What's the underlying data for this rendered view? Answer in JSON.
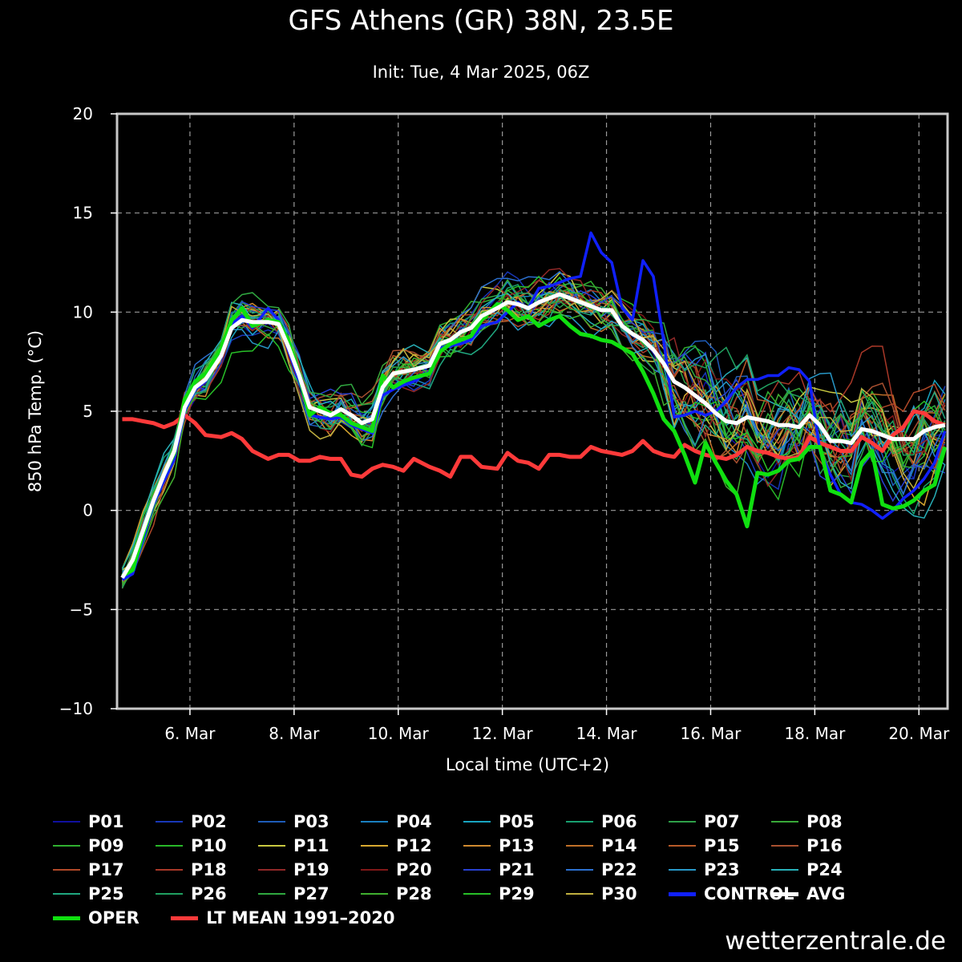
{
  "title": "GFS Athens (GR) 38N, 23.5E",
  "subtitle": "Init: Tue, 4 Mar 2025, 06Z",
  "watermark": "wetterzentrale.de",
  "chart_data": {
    "type": "line",
    "title": "GFS Athens (GR) 38N, 23.5E",
    "subtitle": "Init: Tue, 4 Mar 2025, 06Z",
    "xlabel": "Local time (UTC+2)",
    "ylabel": "850 hPa Temp. (°C)",
    "ylim": [
      -10,
      20
    ],
    "xlim": [
      4.6,
      20.55
    ],
    "x_ticks": [
      6,
      8,
      10,
      12,
      14,
      16,
      18,
      20
    ],
    "x_tick_labels": [
      "6. Mar",
      "8. Mar",
      "10. Mar",
      "12. Mar",
      "14. Mar",
      "16. Mar",
      "18. Mar",
      "20. Mar"
    ],
    "y_ticks": [
      -10,
      -5,
      0,
      5,
      10,
      15,
      20
    ],
    "y_tick_labels": [
      "−10",
      "−5",
      "0",
      "5",
      "10",
      "15",
      "20"
    ],
    "grid": true,
    "legend_position": "bottom",
    "series": [
      {
        "name": "AVG",
        "color": "#ffffff",
        "x": [
          4.7,
          4.9,
          5.1,
          5.3,
          5.5,
          5.7,
          5.9,
          6.1,
          6.3,
          6.6,
          6.8,
          7.0,
          7.2,
          7.5,
          7.7,
          7.9,
          8.1,
          8.3,
          8.5,
          8.7,
          8.9,
          9.1,
          9.3,
          9.5,
          9.7,
          9.9,
          10.1,
          10.3,
          10.6,
          10.8,
          11.0,
          11.2,
          11.4,
          11.6,
          11.9,
          12.1,
          12.3,
          12.5,
          12.7,
          12.9,
          13.1,
          13.3,
          13.5,
          13.7,
          13.9,
          14.1,
          14.3,
          14.5,
          14.7,
          14.9,
          15.1,
          15.3,
          15.5,
          15.7,
          15.9,
          16.1,
          16.3,
          16.5,
          16.7,
          16.9,
          17.1,
          17.3,
          17.5,
          17.7,
          17.9,
          18.1,
          18.3,
          18.5,
          18.7,
          18.9,
          19.1,
          19.3,
          19.5,
          19.7,
          19.9,
          20.1,
          20.3,
          20.5
        ],
        "y": [
          -3.4,
          -2.5,
          -1.0,
          0.5,
          1.8,
          3.0,
          5.2,
          6.2,
          6.6,
          7.8,
          9.2,
          9.6,
          9.5,
          9.5,
          9.4,
          8.2,
          6.8,
          5.2,
          5.0,
          4.8,
          5.1,
          4.8,
          4.4,
          4.6,
          6.2,
          6.9,
          7.0,
          7.1,
          7.3,
          8.4,
          8.6,
          9.0,
          9.2,
          9.8,
          10.2,
          10.5,
          10.4,
          10.2,
          10.5,
          10.7,
          10.9,
          10.7,
          10.5,
          10.3,
          10.1,
          10.1,
          9.3,
          8.9,
          8.6,
          8.1,
          7.4,
          6.5,
          6.2,
          5.8,
          5.4,
          4.9,
          4.5,
          4.4,
          4.7,
          4.6,
          4.5,
          4.3,
          4.3,
          4.2,
          4.8,
          4.3,
          3.5,
          3.5,
          3.4,
          4.1,
          4.0,
          3.8,
          3.6,
          3.6,
          3.6,
          4.0,
          4.2,
          4.3
        ]
      },
      {
        "name": "CONTROL",
        "color": "#1020ff",
        "x": [
          4.7,
          4.9,
          5.1,
          5.3,
          5.5,
          5.7,
          5.9,
          6.1,
          6.3,
          6.6,
          6.8,
          7.0,
          7.2,
          7.5,
          7.7,
          7.9,
          8.1,
          8.3,
          8.5,
          8.7,
          8.9,
          9.1,
          9.3,
          9.5,
          9.7,
          9.9,
          10.1,
          10.3,
          10.6,
          10.8,
          11.0,
          11.2,
          11.4,
          11.6,
          11.9,
          12.1,
          12.3,
          12.5,
          12.7,
          12.9,
          13.1,
          13.3,
          13.5,
          13.7,
          13.9,
          14.1,
          14.3,
          14.5,
          14.7,
          14.9,
          15.1,
          15.3,
          15.5,
          15.7,
          15.9,
          16.1,
          16.3,
          16.5,
          16.7,
          16.9,
          17.1,
          17.3,
          17.5,
          17.7,
          17.9,
          18.1,
          18.3,
          18.5,
          18.7,
          18.9,
          19.1,
          19.3,
          19.5,
          19.7,
          19.9,
          20.1,
          20.3,
          20.5
        ],
        "y": [
          -3.5,
          -3.2,
          -1.5,
          0.3,
          1.5,
          2.6,
          5.0,
          6.1,
          6.5,
          7.9,
          9.4,
          9.8,
          9.2,
          10.2,
          9.6,
          8.0,
          6.5,
          4.8,
          4.7,
          4.6,
          4.7,
          4.3,
          4.1,
          3.9,
          5.8,
          6.1,
          6.3,
          6.5,
          7.0,
          8.2,
          8.3,
          8.4,
          8.6,
          9.3,
          9.5,
          10.0,
          10.5,
          10.2,
          11.2,
          11.3,
          11.5,
          11.7,
          11.8,
          14.0,
          13.0,
          12.5,
          10.2,
          9.6,
          12.6,
          11.8,
          8.5,
          4.7,
          4.8,
          5.0,
          4.8,
          5.0,
          5.5,
          6.2,
          6.6,
          6.6,
          6.8,
          6.8,
          7.2,
          7.1,
          6.5,
          3.0,
          1.8,
          0.8,
          0.4,
          0.3,
          0.0,
          -0.4,
          0.0,
          0.6,
          1.0,
          1.6,
          2.4,
          4.0
        ]
      },
      {
        "name": "OPER",
        "color": "#10e010",
        "x": [
          4.7,
          4.9,
          5.1,
          5.3,
          5.5,
          5.7,
          5.9,
          6.1,
          6.3,
          6.6,
          6.8,
          7.0,
          7.2,
          7.5,
          7.7,
          7.9,
          8.1,
          8.3,
          8.5,
          8.7,
          8.9,
          9.1,
          9.3,
          9.5,
          9.7,
          9.9,
          10.1,
          10.3,
          10.6,
          10.8,
          11.0,
          11.2,
          11.4,
          11.6,
          11.9,
          12.1,
          12.3,
          12.5,
          12.7,
          12.9,
          13.1,
          13.3,
          13.5,
          13.7,
          13.9,
          14.1,
          14.3,
          14.5,
          14.7,
          14.9,
          15.1,
          15.3,
          15.5,
          15.7,
          15.9,
          16.1,
          16.3,
          16.5,
          16.7,
          16.9,
          17.1,
          17.3,
          17.5,
          17.7,
          17.9,
          18.1,
          18.3,
          18.5,
          18.7,
          18.9,
          19.1,
          19.3,
          19.5,
          19.7,
          19.9,
          20.1,
          20.3,
          20.5
        ],
        "y": [
          -3.3,
          -3.0,
          -1.2,
          0.5,
          1.8,
          2.9,
          5.6,
          6.5,
          6.9,
          8.2,
          9.6,
          10.2,
          9.3,
          9.6,
          9.5,
          8.5,
          6.8,
          4.8,
          5.2,
          4.9,
          4.8,
          4.4,
          4.2,
          4.0,
          6.8,
          6.2,
          6.5,
          6.7,
          6.9,
          8.0,
          8.4,
          8.6,
          8.8,
          9.6,
          10.4,
          10.1,
          9.6,
          9.8,
          9.3,
          9.6,
          9.8,
          9.3,
          8.9,
          8.8,
          8.6,
          8.5,
          8.2,
          7.9,
          7.0,
          5.9,
          4.6,
          4.0,
          2.8,
          1.4,
          3.4,
          2.4,
          1.5,
          0.8,
          -0.8,
          1.9,
          1.8,
          2.0,
          2.5,
          2.6,
          3.2,
          3.2,
          1.0,
          0.8,
          0.4,
          2.4,
          3.0,
          0.3,
          0.1,
          0.2,
          0.5,
          1.0,
          1.3,
          3.2
        ]
      },
      {
        "name": "LT MEAN 1991–2020",
        "color": "#ff3a3a",
        "x": [
          4.7,
          4.9,
          5.1,
          5.3,
          5.5,
          5.7,
          5.9,
          6.1,
          6.3,
          6.6,
          6.8,
          7.0,
          7.2,
          7.5,
          7.7,
          7.9,
          8.1,
          8.3,
          8.5,
          8.7,
          8.9,
          9.1,
          9.3,
          9.5,
          9.7,
          9.9,
          10.1,
          10.3,
          10.6,
          10.8,
          11.0,
          11.2,
          11.4,
          11.6,
          11.9,
          12.1,
          12.3,
          12.5,
          12.7,
          12.9,
          13.1,
          13.3,
          13.5,
          13.7,
          13.9,
          14.1,
          14.3,
          14.5,
          14.7,
          14.9,
          15.1,
          15.3,
          15.5,
          15.7,
          15.9,
          16.1,
          16.3,
          16.5,
          16.7,
          16.9,
          17.1,
          17.3,
          17.5,
          17.7,
          17.9,
          18.1,
          18.3,
          18.5,
          18.7,
          18.9,
          19.1,
          19.3,
          19.5,
          19.7,
          19.9,
          20.1,
          20.3,
          20.5
        ],
        "y": [
          4.6,
          4.6,
          4.5,
          4.4,
          4.2,
          4.4,
          4.8,
          4.4,
          3.8,
          3.7,
          3.9,
          3.6,
          3.0,
          2.6,
          2.8,
          2.8,
          2.5,
          2.5,
          2.7,
          2.6,
          2.6,
          1.8,
          1.7,
          2.1,
          2.3,
          2.2,
          2.0,
          2.6,
          2.2,
          2.0,
          1.7,
          2.7,
          2.7,
          2.2,
          2.1,
          2.9,
          2.5,
          2.4,
          2.1,
          2.8,
          2.8,
          2.7,
          2.7,
          3.2,
          3.0,
          2.9,
          2.8,
          3.0,
          3.5,
          3.0,
          2.8,
          2.7,
          3.3,
          3.0,
          2.8,
          2.7,
          2.6,
          2.8,
          3.2,
          3.0,
          2.9,
          2.7,
          2.6,
          2.7,
          3.7,
          3.4,
          3.2,
          3.0,
          3.0,
          3.7,
          3.4,
          3.0,
          3.8,
          4.2,
          5.0,
          4.9,
          4.5,
          4.3
        ]
      }
    ]
  },
  "legend": [
    {
      "label": "P01",
      "color": "#1010a0"
    },
    {
      "label": "P02",
      "color": "#1838b8"
    },
    {
      "label": "P03",
      "color": "#1e5cb8"
    },
    {
      "label": "P04",
      "color": "#1a80c0"
    },
    {
      "label": "P05",
      "color": "#18a4c0"
    },
    {
      "label": "P06",
      "color": "#18a070"
    },
    {
      "label": "P07",
      "color": "#2ea048"
    },
    {
      "label": "P08",
      "color": "#38a838"
    },
    {
      "label": "P09",
      "color": "#30b030"
    },
    {
      "label": "P10",
      "color": "#28b828"
    },
    {
      "label": "P11",
      "color": "#c8c840"
    },
    {
      "label": "P12",
      "color": "#d8a830"
    },
    {
      "label": "P13",
      "color": "#d08a30"
    },
    {
      "label": "P14",
      "color": "#c07028"
    },
    {
      "label": "P15",
      "color": "#b85a28"
    },
    {
      "label": "P16",
      "color": "#a85030"
    },
    {
      "label": "P17",
      "color": "#b04828"
    },
    {
      "label": "P18",
      "color": "#a83828"
    },
    {
      "label": "P19",
      "color": "#902828"
    },
    {
      "label": "P20",
      "color": "#801818"
    },
    {
      "label": "P21",
      "color": "#2840d0"
    },
    {
      "label": "P22",
      "color": "#2c70d0"
    },
    {
      "label": "P23",
      "color": "#2898c8"
    },
    {
      "label": "P24",
      "color": "#28b0b8"
    },
    {
      "label": "P25",
      "color": "#20a880"
    },
    {
      "label": "P26",
      "color": "#20a060"
    },
    {
      "label": "P27",
      "color": "#30a840"
    },
    {
      "label": "P28",
      "color": "#40b030"
    },
    {
      "label": "P29",
      "color": "#28c028"
    },
    {
      "label": "P30",
      "color": "#c0b040"
    },
    {
      "label": "CONTROL",
      "color": "#1020ff"
    },
    {
      "label": "AVG",
      "color": "#ffffff"
    },
    {
      "label": "OPER",
      "color": "#10e010"
    },
    {
      "label": "LT MEAN 1991–2020",
      "color": "#ff3a3a"
    }
  ]
}
